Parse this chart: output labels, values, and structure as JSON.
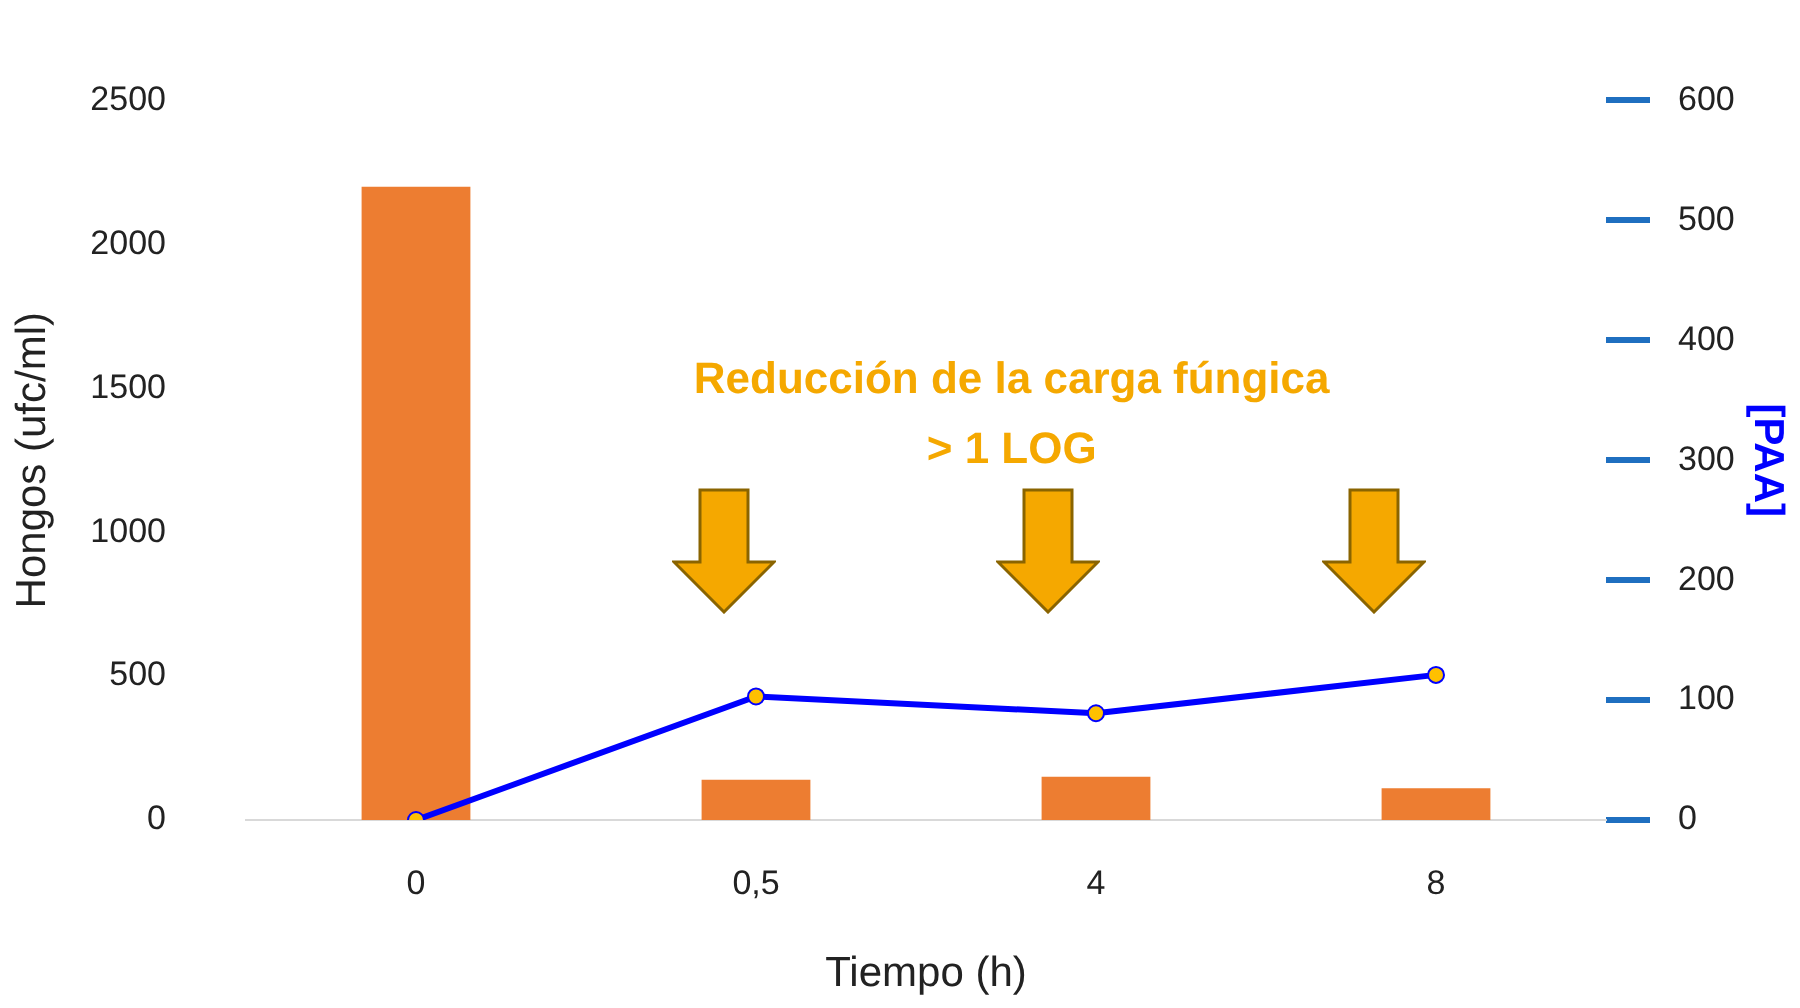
{
  "chart_data": {
    "type": "bar",
    "xlabel": "Tiempo (h)",
    "ylabel": "Hongos (ufc/ml)",
    "y2label": "[PAA]",
    "categories": [
      "0",
      "0,5",
      "4",
      "8"
    ],
    "series": [
      {
        "color": "#ed7d31",
        "values": [
          2200,
          140,
          150,
          110
        ]
      },
      {
        "type": "line",
        "axis": "y2",
        "color": "#0000ff",
        "values": [
          0,
          103,
          89,
          121
        ]
      }
    ],
    "ylim": [
      0,
      2500
    ],
    "yticks": [
      0,
      500,
      1000,
      1500,
      2000,
      2500
    ],
    "y2lim": [
      0,
      600
    ],
    "y2ticks": [
      0,
      100,
      200,
      300,
      400,
      500,
      600
    ],
    "annotations": [
      "Reducción de la carga fúngica",
      "> 1 LOG"
    ],
    "grid": false,
    "legend": false,
    "marker": "circle"
  }
}
